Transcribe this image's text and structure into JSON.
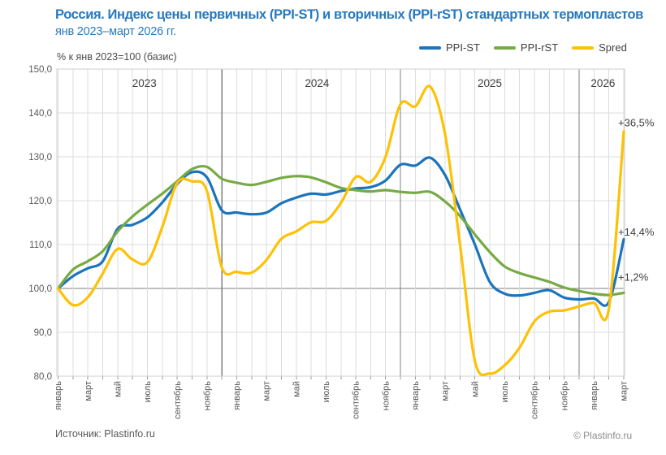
{
  "title": {
    "line1": "Россия. Индекс цены первичных (PPI-ST) и вторичных (PPI-rST) стандартных термопластов",
    "line2": "янв 2023–март 2026 гг."
  },
  "axis_note": "% к янв 2023=100 (базис)",
  "legend": [
    {
      "label": "PPI-ST",
      "color": "#1B74BC"
    },
    {
      "label": "PPI-rST",
      "color": "#77AA44"
    },
    {
      "label": "Spred",
      "color": "#FDC105"
    }
  ],
  "footer": {
    "source": "Источник: Plastinfo.ru",
    "copyright": "© Plastinfo.ru"
  },
  "colors": {
    "title_blue": "#2779BE",
    "grid_light": "#DCDCDC",
    "grid_dark": "#7F7F7F",
    "tick_text": "#595959",
    "year_text": "#3F3F3F"
  },
  "chart_data": {
    "type": "line",
    "title": "Россия. Индекс цены первичных (PPI-ST) и вторичных (PPI-rST) стандартных термопластов, янв 2023–март 2026",
    "ylabel": "% к янв 2023=100 (базис)",
    "ylim": [
      80,
      150
    ],
    "baseline_value": 100,
    "grid": true,
    "legend_position": "top-right",
    "categories": [
      "2023-01",
      "2023-02",
      "2023-03",
      "2023-04",
      "2023-05",
      "2023-06",
      "2023-07",
      "2023-08",
      "2023-09",
      "2023-10",
      "2023-11",
      "2023-12",
      "2024-01",
      "2024-02",
      "2024-03",
      "2024-04",
      "2024-05",
      "2024-06",
      "2024-07",
      "2024-08",
      "2024-09",
      "2024-10",
      "2024-11",
      "2024-12",
      "2025-01",
      "2025-02",
      "2025-03",
      "2025-04",
      "2025-05",
      "2025-06",
      "2025-07",
      "2025-08",
      "2025-09",
      "2025-10",
      "2025-11",
      "2025-12",
      "2026-01",
      "2026-02",
      "2026-03"
    ],
    "x_tick_labels": [
      "январь",
      "март",
      "май",
      "июль",
      "сентябрь",
      "ноябрь",
      "январь",
      "март",
      "май",
      "июль",
      "сентябрь",
      "ноябрь",
      "январь",
      "март",
      "май",
      "июль",
      "сентябрь",
      "ноябрь",
      "январь",
      "март"
    ],
    "x_tick_every": 2,
    "y_tick_labels": [
      "80,0",
      "90,0",
      "100,0",
      "110,0",
      "120,0",
      "130,0",
      "140,0",
      "150,0"
    ],
    "year_labels": [
      {
        "text": "2023",
        "pos": 5.8
      },
      {
        "text": "2024",
        "pos": 17.4
      },
      {
        "text": "2025",
        "pos": 29.0
      },
      {
        "text": "2026",
        "pos": 36.6
      }
    ],
    "year_separators_at": [
      11,
      23,
      35
    ],
    "series": [
      {
        "name": "PPI-ST",
        "color": "#1B74BC",
        "values": [
          100,
          102.8,
          104.6,
          106.2,
          113.6,
          114.5,
          116.2,
          119.6,
          123.8,
          126.5,
          125.3,
          117.8,
          117.3,
          116.9,
          117.3,
          119.4,
          120.7,
          121.6,
          121.4,
          122.2,
          122.8,
          123.1,
          124.6,
          128.2,
          128.0,
          129.8,
          125.8,
          118.0,
          110.0,
          101.5,
          98.8,
          98.4,
          99.0,
          99.6,
          97.9,
          97.5,
          97.7,
          96.9,
          111.2
        ]
      },
      {
        "name": "PPI-rST",
        "color": "#77AA44",
        "values": [
          100,
          104.3,
          106.2,
          108.5,
          113.0,
          116.4,
          119.1,
          121.6,
          124.4,
          127.2,
          127.7,
          125.0,
          124.1,
          123.6,
          124.3,
          125.2,
          125.6,
          125.3,
          124.2,
          122.9,
          122.4,
          122.1,
          122.4,
          122.0,
          121.8,
          122.0,
          119.8,
          116.5,
          112.3,
          108.3,
          105.0,
          103.5,
          102.5,
          101.5,
          100.2,
          99.4,
          98.8,
          98.5,
          99.0
        ]
      },
      {
        "name": "Spred",
        "color": "#FDC105",
        "values": [
          100,
          96.2,
          98.0,
          103.4,
          109.0,
          106.6,
          106.0,
          114.0,
          124.0,
          124.4,
          122.2,
          104.8,
          103.8,
          103.6,
          106.5,
          111.3,
          113.0,
          115.1,
          115.4,
          119.5,
          125.4,
          124.3,
          130.0,
          142.0,
          141.5,
          146.0,
          135.0,
          110.0,
          83.5,
          80.6,
          82.5,
          86.5,
          92.5,
          94.7,
          95.0,
          95.9,
          96.7,
          95.4,
          135.8
        ]
      }
    ],
    "annotations": [
      {
        "text": "+36,5%",
        "series": "Spred",
        "x_index": 38,
        "y_value": 137.8
      },
      {
        "text": "+14,4%",
        "series": "PPI-ST",
        "x_index": 38,
        "y_value": 112.9
      },
      {
        "text": "+1,2%",
        "series": "PPI-rST",
        "x_index": 38,
        "y_value": 102.6
      }
    ]
  }
}
